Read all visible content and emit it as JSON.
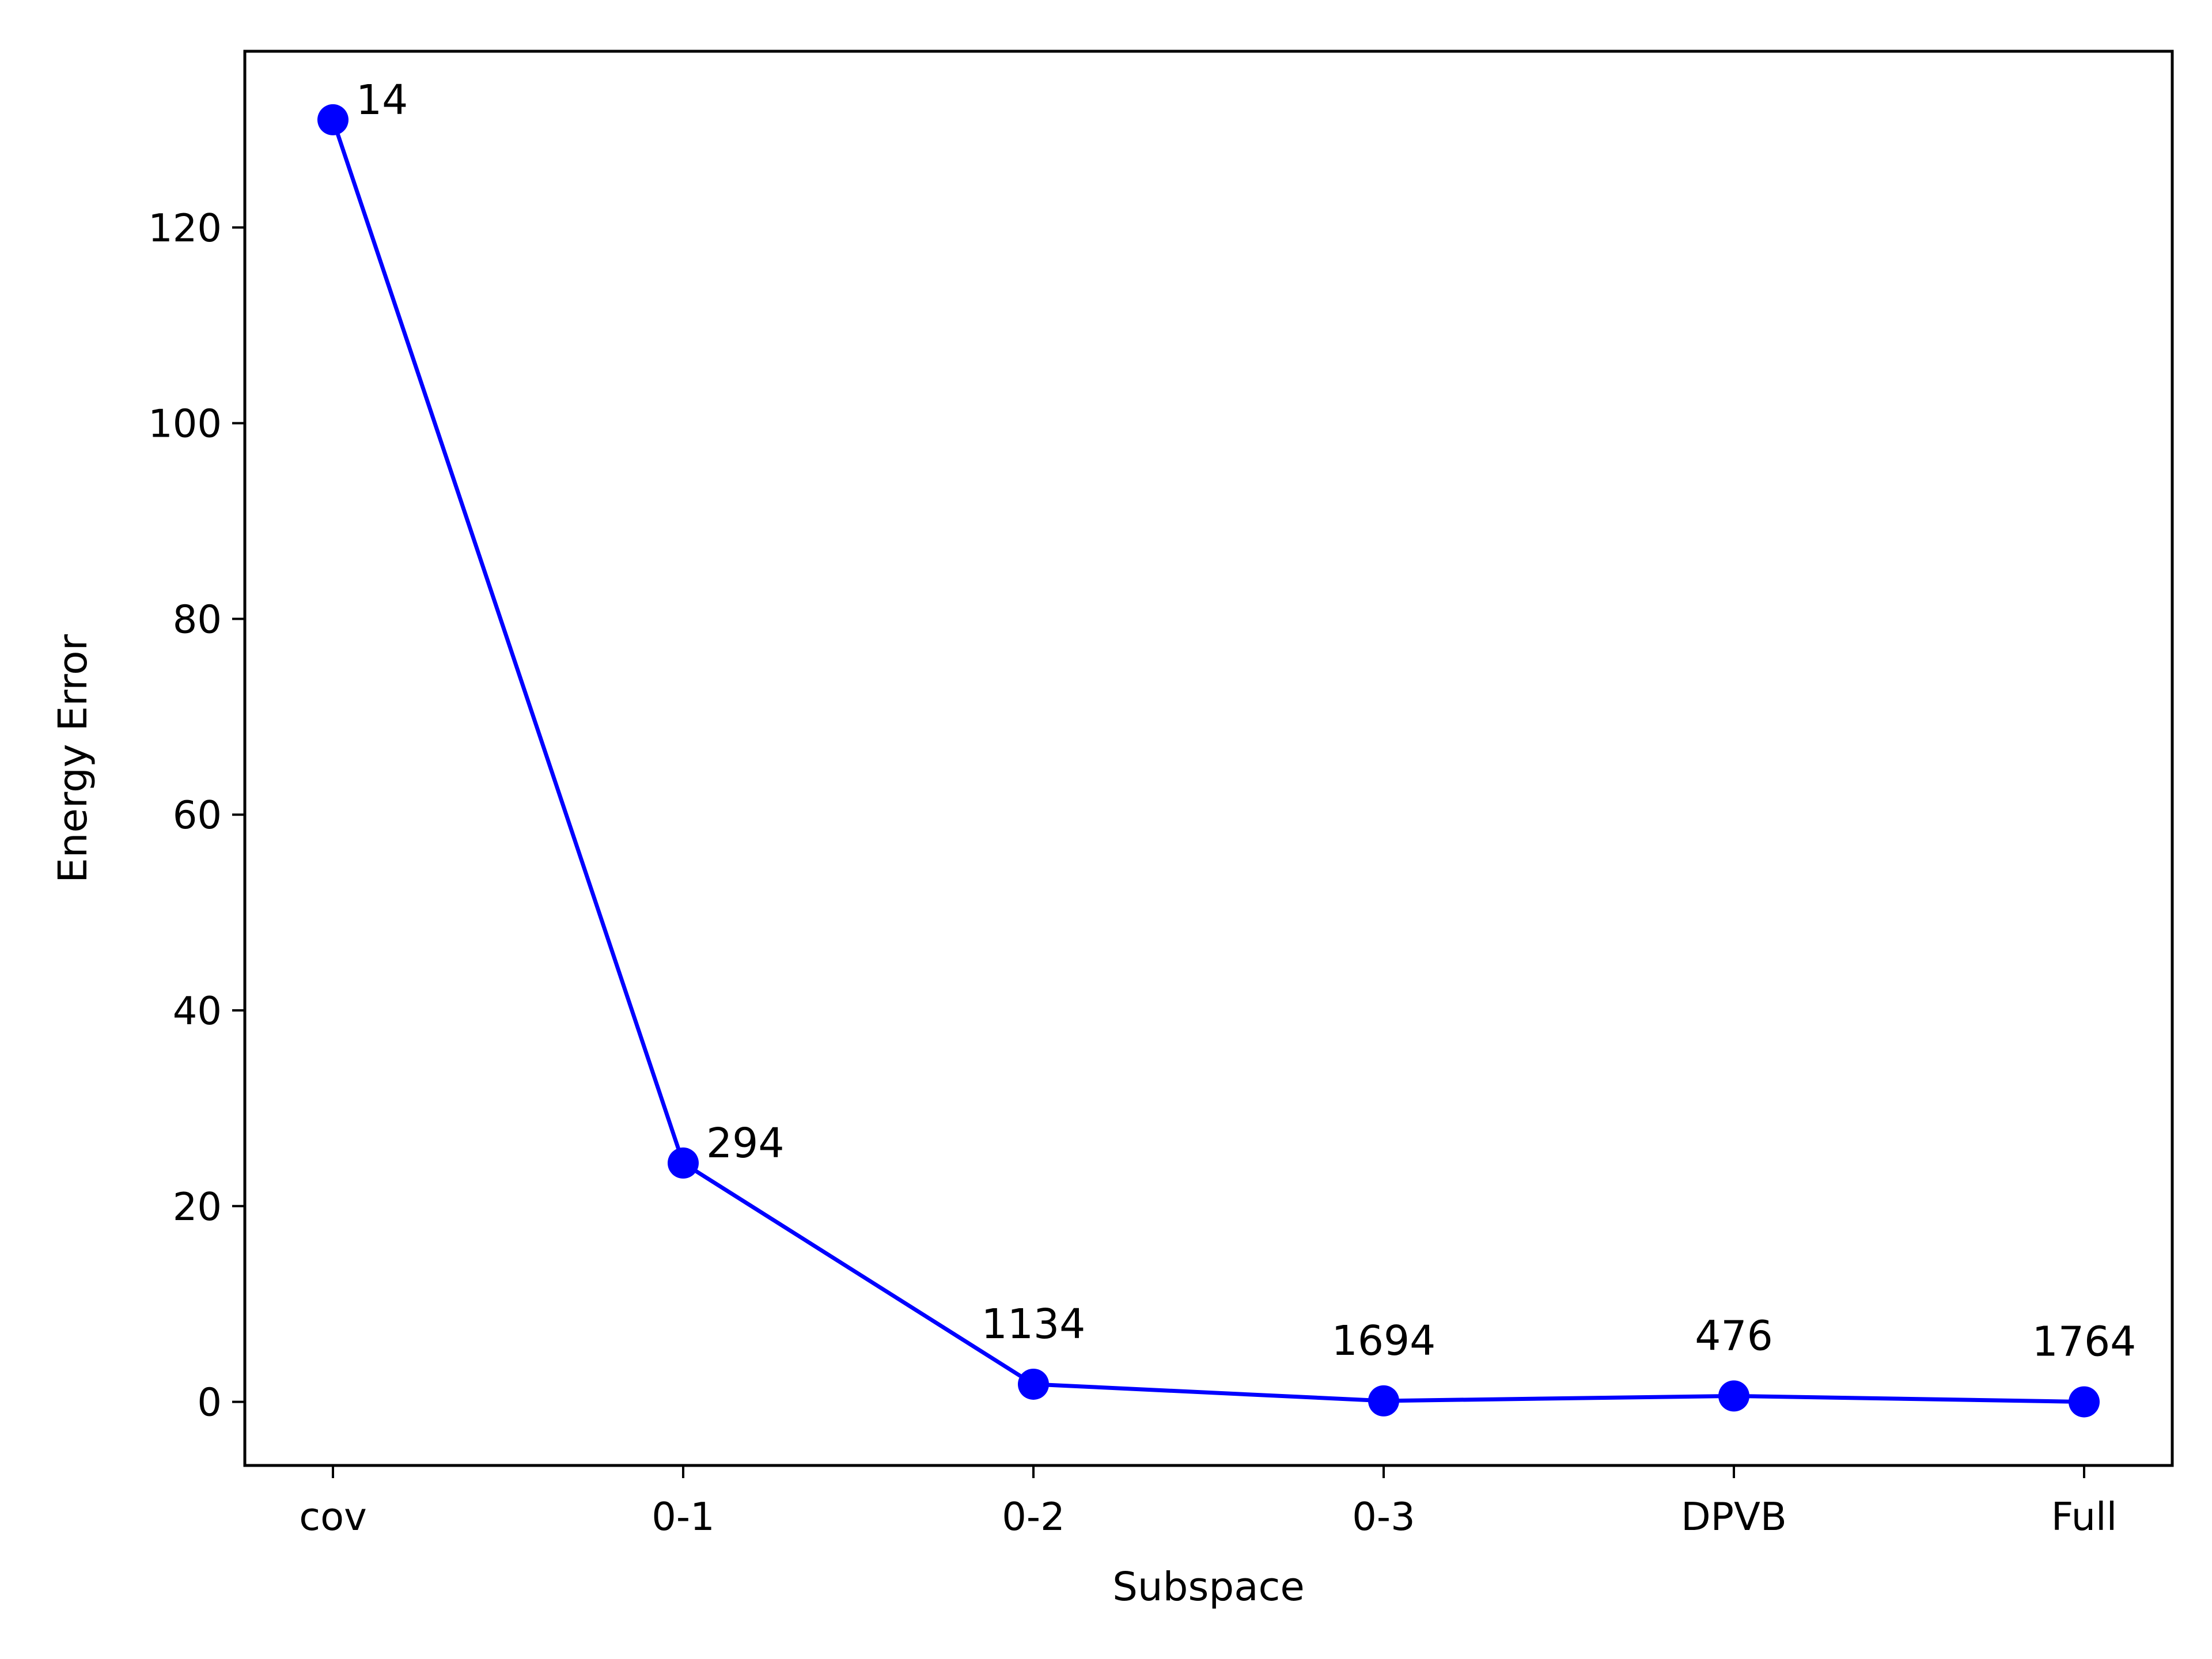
{
  "chart_data": {
    "type": "line",
    "categories": [
      "cov",
      "0-1",
      "0-2",
      "0-3",
      "DPVB",
      "Full"
    ],
    "values": [
      131,
      24.4,
      1.8,
      0.1,
      0.6,
      0.0
    ],
    "point_labels": [
      "14",
      "294",
      "1134",
      "1694",
      "476",
      "1764"
    ],
    "xlabel": "Subspace",
    "ylabel": "Energy Error",
    "ylim": [
      -6.5,
      138
    ],
    "yticks": [
      0,
      20,
      40,
      60,
      80,
      100,
      120
    ],
    "grid": false,
    "line_color": "#0000ff",
    "marker_color": "#0000ff"
  }
}
